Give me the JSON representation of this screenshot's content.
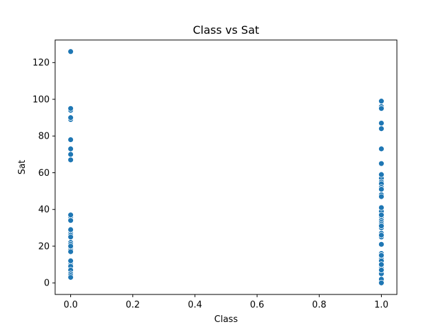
{
  "chart_data": {
    "type": "scatter",
    "title": "Class vs Sat",
    "xlabel": "Class",
    "ylabel": "Sat",
    "xlim": [
      -0.05,
      1.05
    ],
    "ylim": [
      -6.3,
      132.3
    ],
    "xticks": [
      0.0,
      0.2,
      0.4,
      0.6,
      0.8,
      1.0
    ],
    "xtick_labels": [
      "0.0",
      "0.2",
      "0.4",
      "0.6",
      "0.8",
      "1.0"
    ],
    "yticks": [
      0,
      20,
      40,
      60,
      80,
      100,
      120
    ],
    "ytick_labels": [
      "0",
      "20",
      "40",
      "60",
      "80",
      "100",
      "120"
    ],
    "grid": false,
    "legend": null,
    "marker_color": "#1f77b4",
    "series": [
      {
        "x": [
          0,
          0,
          0,
          0,
          0,
          0,
          0,
          0,
          0,
          0,
          0,
          0,
          0,
          0,
          0,
          0,
          0,
          0,
          0,
          0,
          0,
          0,
          0,
          0,
          0,
          0,
          0,
          0,
          0,
          0,
          0,
          0,
          0,
          0,
          0,
          0,
          0,
          0,
          0,
          0,
          0,
          0,
          0
        ],
        "y": [
          126,
          95,
          94,
          90,
          89,
          78,
          73,
          70,
          67,
          37,
          36,
          34,
          29,
          27,
          26,
          25,
          22,
          21,
          20,
          19,
          18,
          17,
          12,
          11,
          10,
          9,
          7,
          6,
          5,
          4,
          3,
          126,
          95,
          90,
          70,
          37,
          29,
          20,
          12,
          7,
          5,
          4,
          3
        ]
      },
      {
        "x": [
          1,
          1,
          1,
          1,
          1,
          1,
          1,
          1,
          1,
          1,
          1,
          1,
          1,
          1,
          1,
          1,
          1,
          1,
          1,
          1,
          1,
          1,
          1,
          1,
          1,
          1,
          1,
          1,
          1,
          1,
          1,
          1,
          1,
          1,
          1,
          1,
          1,
          1,
          1,
          1,
          1,
          1,
          1,
          1,
          1,
          1,
          1,
          1,
          1,
          1,
          1,
          1,
          1,
          1,
          1,
          1,
          1
        ],
        "y": [
          99,
          96,
          95,
          87,
          84,
          73,
          65,
          59,
          57,
          55,
          54,
          52,
          51,
          48,
          47,
          41,
          39,
          37,
          36,
          34,
          33,
          32,
          31,
          30,
          27,
          26,
          25,
          21,
          16,
          15,
          14,
          13,
          12,
          10,
          9,
          8,
          7,
          6,
          5,
          2,
          1,
          0,
          99,
          95,
          87,
          59,
          51,
          41,
          37,
          31,
          26,
          21,
          15,
          10,
          7,
          2,
          0
        ]
      }
    ]
  }
}
